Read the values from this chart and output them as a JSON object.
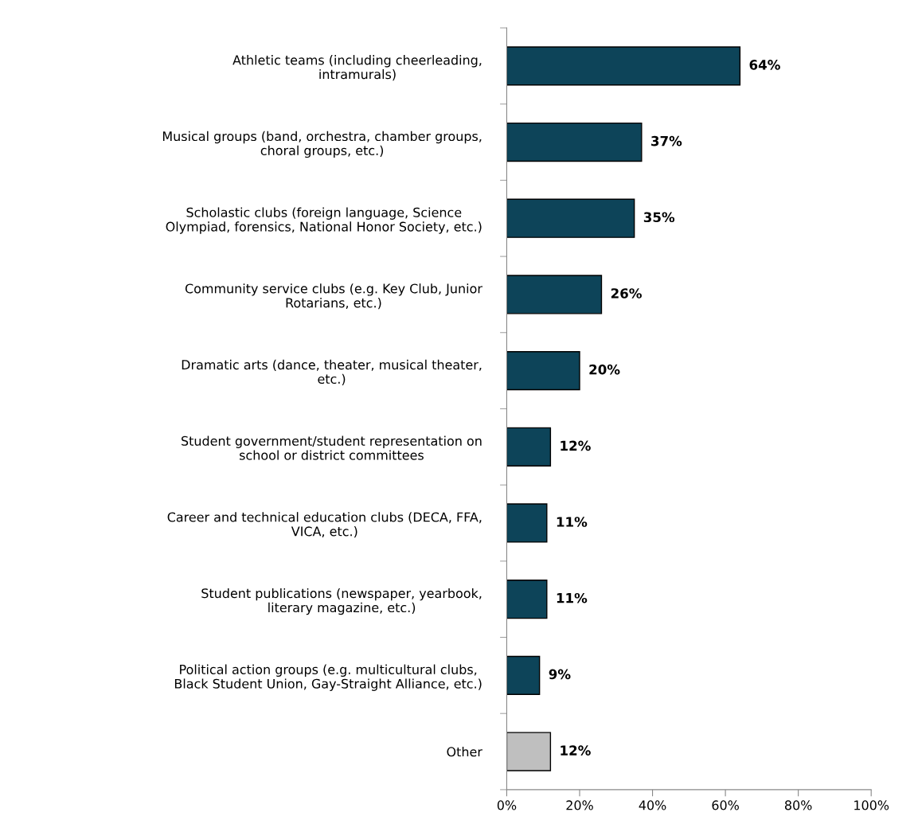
{
  "chart_data": {
    "type": "bar",
    "orientation": "horizontal",
    "categories": [
      "Athletic teams (including cheerleading,\nintramurals)",
      "Musical groups (band, orchestra, chamber groups,\nchoral groups, etc.)",
      "Scholastic clubs (foreign language, Science\nOlympiad, forensics, National Honor Society, etc.)",
      "Community service clubs (e.g. Key Club, Junior\nRotarians, etc.)",
      "Dramatic arts (dance, theater, musical theater,\netc.)",
      "Student government/student representation on\nschool or district committees",
      "Career and technical education clubs (DECA, FFA,\nVICA, etc.)",
      "Student publications (newspaper, yearbook,\nliterary magazine, etc.)",
      "Political action groups (e.g. multicultural clubs,\nBlack Student Union, Gay-Straight Alliance, etc.)",
      "Other"
    ],
    "values": [
      64,
      37,
      35,
      26,
      20,
      12,
      11,
      11,
      9,
      12
    ],
    "colors": [
      "#0d4459",
      "#0d4459",
      "#0d4459",
      "#0d4459",
      "#0d4459",
      "#0d4459",
      "#0d4459",
      "#0d4459",
      "#0d4459",
      "#bfbfbf"
    ],
    "value_labels": [
      "64%",
      "37%",
      "35%",
      "26%",
      "20%",
      "12%",
      "11%",
      "11%",
      "9%",
      "12%"
    ],
    "xlim": [
      0,
      100
    ],
    "xticks": [
      {
        "value": 0,
        "label": "0%"
      },
      {
        "value": 20,
        "label": "20%"
      },
      {
        "value": 40,
        "label": "40%"
      },
      {
        "value": 60,
        "label": "60%"
      },
      {
        "value": 80,
        "label": "80%"
      },
      {
        "value": 100,
        "label": "100%"
      }
    ],
    "grid": false,
    "legend": false
  }
}
